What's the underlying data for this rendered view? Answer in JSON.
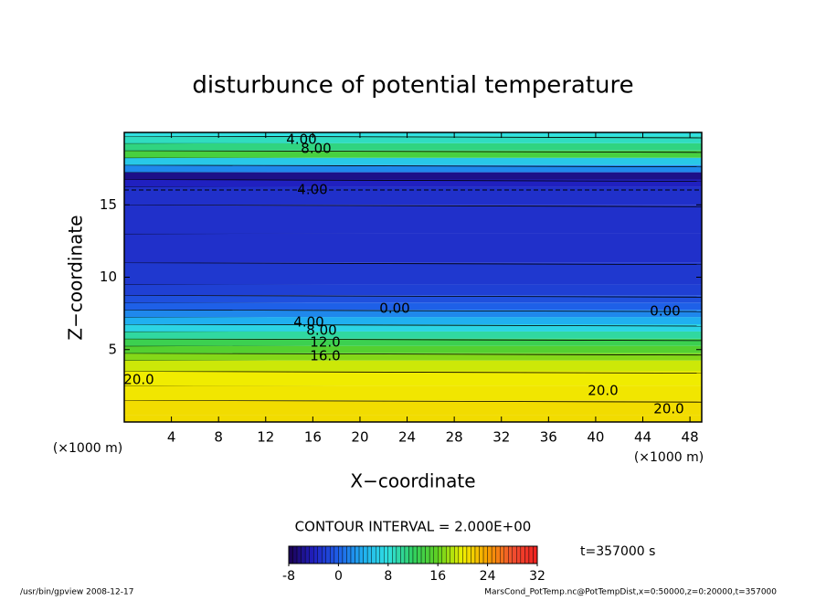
{
  "chart_data": {
    "type": "contour",
    "title": "disturbunce of potential temperature",
    "xlabel": "X−coordinate",
    "ylabel": "Z−coordinate",
    "x_unit_left": "(×1000 m)",
    "x_unit_right": "(×1000 m)",
    "xlim": [
      0,
      49
    ],
    "ylim": [
      0,
      20
    ],
    "xticks": [
      4,
      8,
      12,
      16,
      20,
      24,
      28,
      32,
      36,
      40,
      44,
      48
    ],
    "yticks": [
      5,
      10,
      15
    ],
    "z": [
      0,
      1,
      2,
      3,
      4,
      4.5,
      5,
      5.5,
      6,
      6.5,
      7,
      7.5,
      8,
      8.5,
      9,
      10,
      12,
      14,
      16,
      16.5,
      17,
      17.5,
      18,
      18.5,
      19,
      19.5,
      20
    ],
    "values": [
      21,
      21,
      20.5,
      20.2,
      19,
      17,
      15,
      13,
      10,
      7,
      4,
      2,
      0,
      -1,
      -2,
      -2.5,
      -3,
      -3,
      -3,
      -4,
      -6,
      2,
      6,
      14,
      11,
      9,
      8
    ],
    "contour_labels": [
      "4.00",
      "8.00",
      "4.00",
      "0.00",
      "0.00",
      "4.00",
      "8.00",
      "12.0",
      "16.0",
      "20.0",
      "20.0",
      "20.0"
    ],
    "contour_interval": "CONTOUR INTERVAL = 2.000E+00",
    "time_label": "t=357000 s",
    "colorbar_lim": [
      -8,
      32
    ],
    "colorbar_ticks": [
      -8,
      0,
      8,
      16,
      24,
      32
    ],
    "colorscale": [
      {
        "value": -8,
        "color": "#1a0050"
      },
      {
        "value": -4,
        "color": "#2020c0"
      },
      {
        "value": 0,
        "color": "#1e60e8"
      },
      {
        "value": 4,
        "color": "#20b0f0"
      },
      {
        "value": 8,
        "color": "#30e0e0"
      },
      {
        "value": 12,
        "color": "#30d060"
      },
      {
        "value": 16,
        "color": "#60d020"
      },
      {
        "value": 20,
        "color": "#f0f000"
      },
      {
        "value": 24,
        "color": "#f8a000"
      },
      {
        "value": 28,
        "color": "#f05030"
      },
      {
        "value": 32,
        "color": "#f02020"
      }
    ],
    "footer_left": "/usr/bin/gpview  2008-12-17",
    "footer_right": "MarsCond_PotTemp.nc@PotTempDist,x=0:50000,z=0:20000,t=357000"
  }
}
